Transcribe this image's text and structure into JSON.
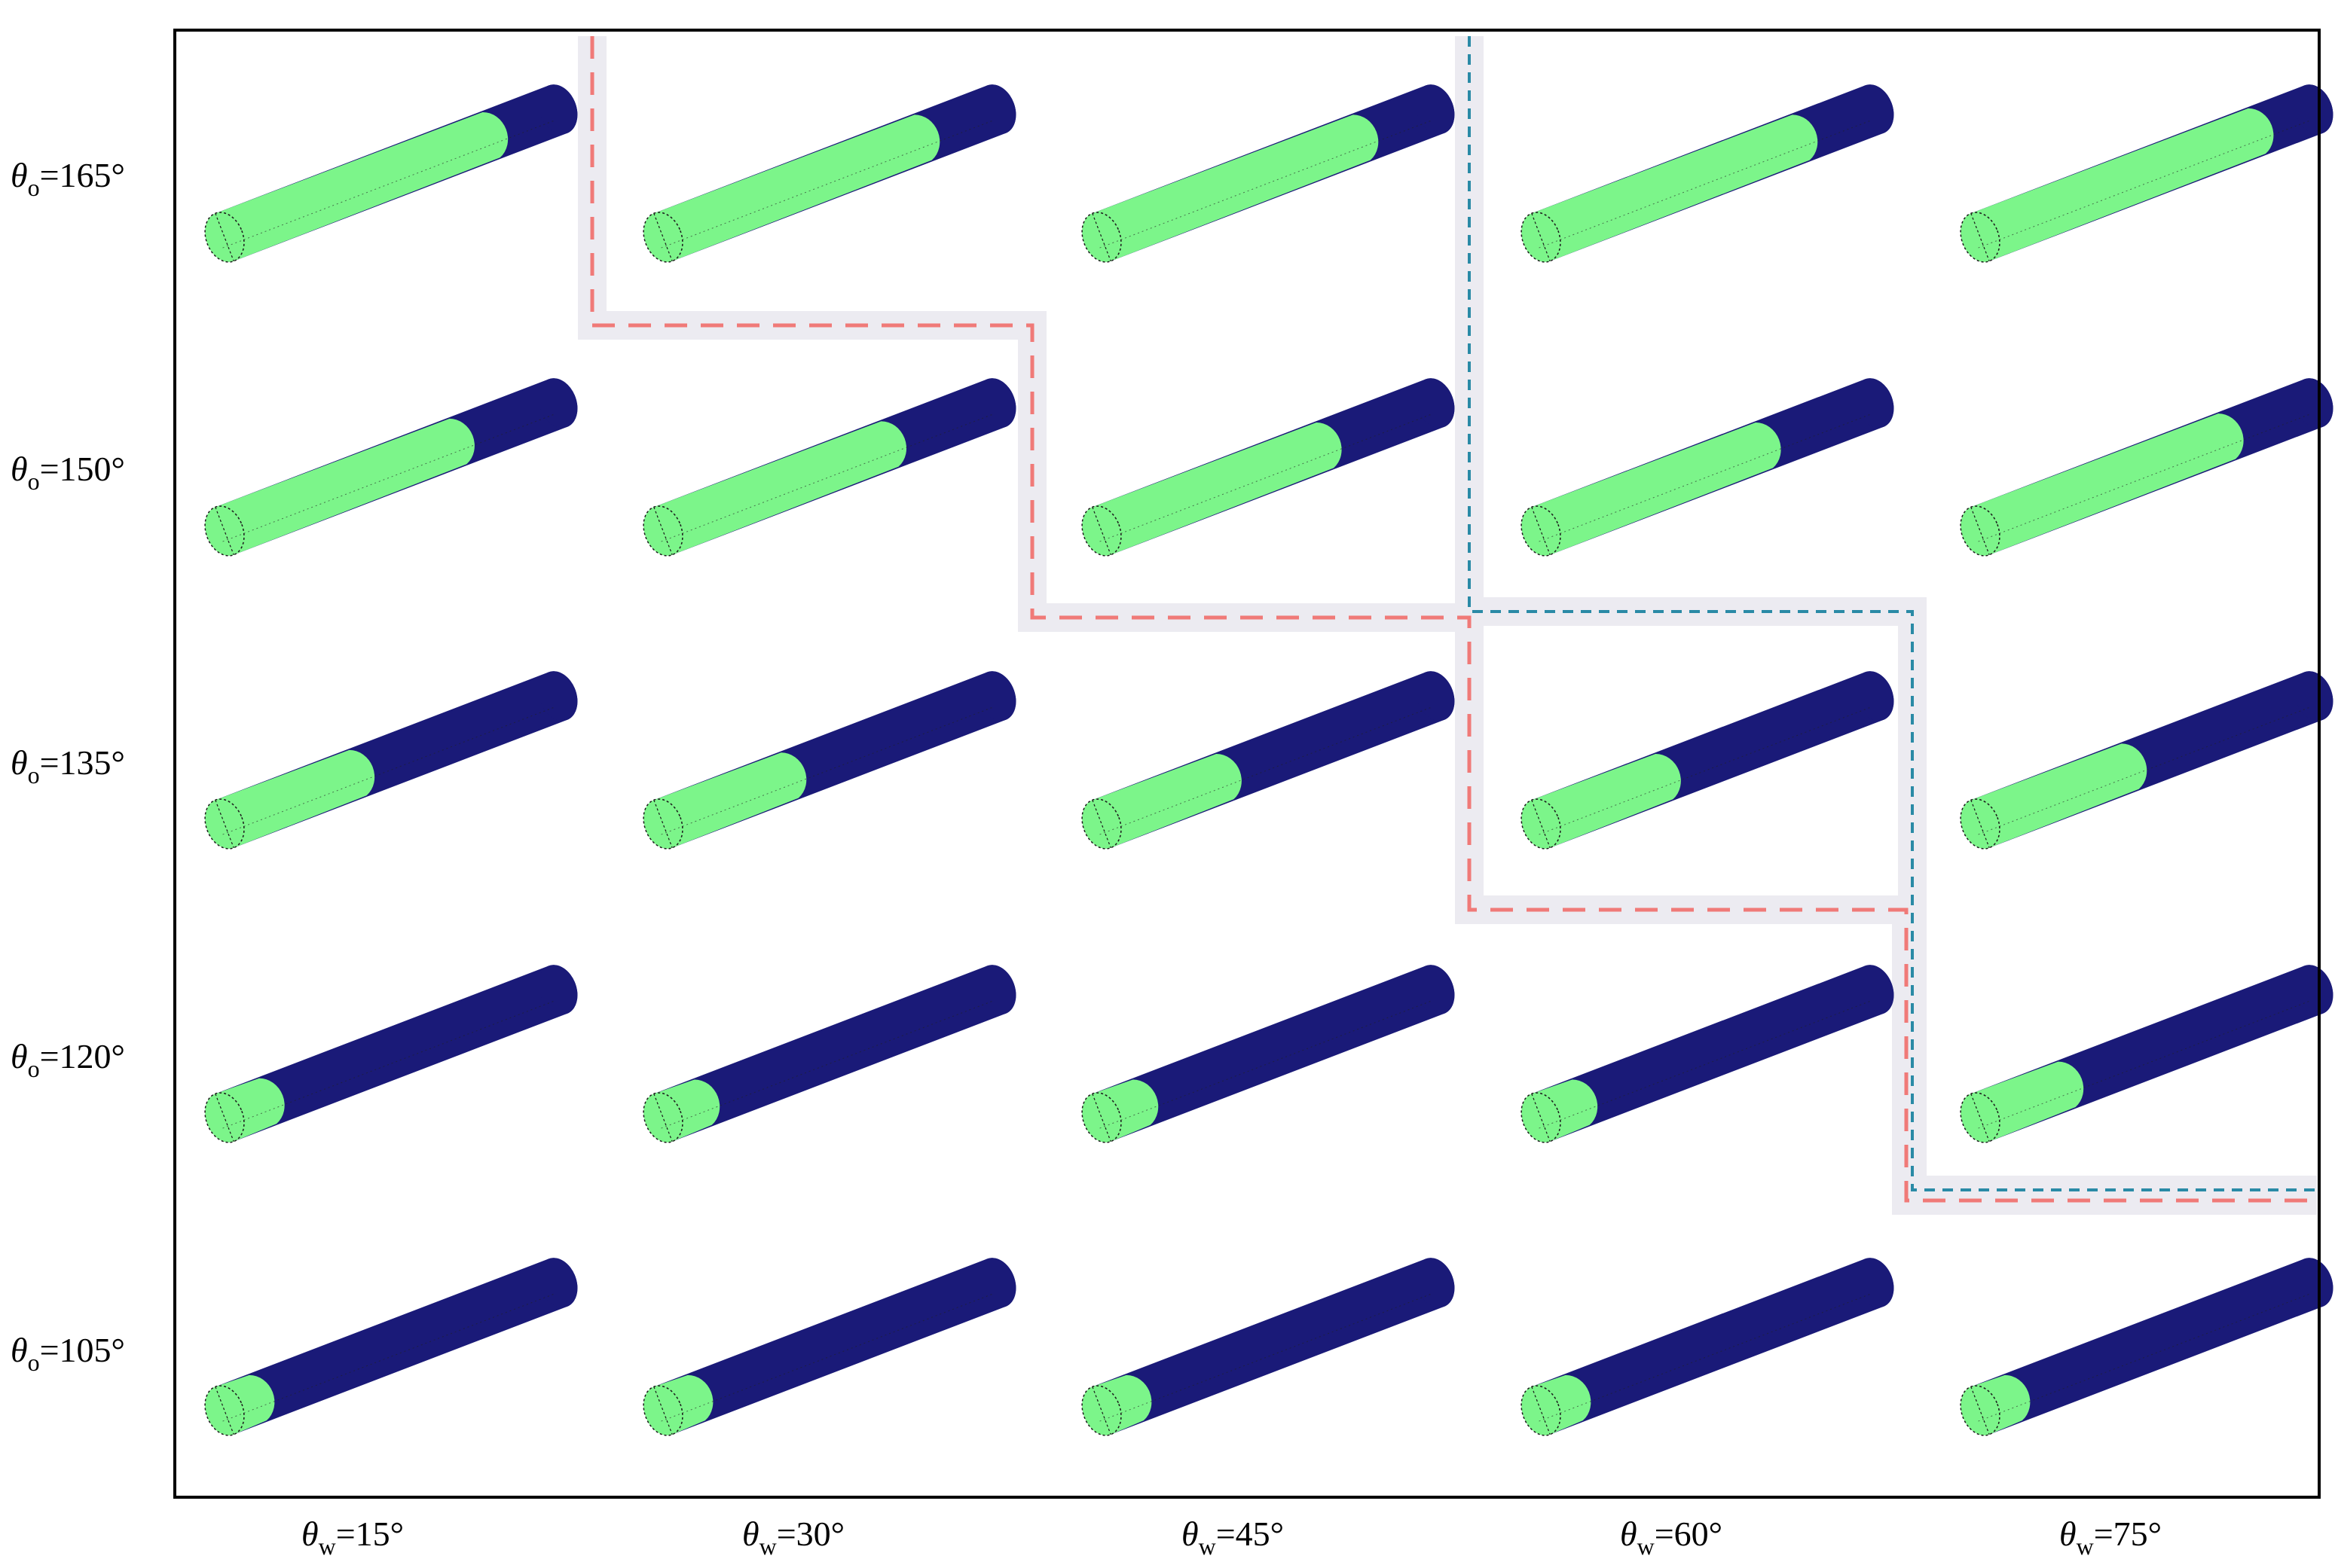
{
  "figure": {
    "rows": [
      {
        "symbol": "θ",
        "subscript": "o",
        "value": "=165°"
      },
      {
        "symbol": "θ",
        "subscript": "o",
        "value": "=150°"
      },
      {
        "symbol": "θ",
        "subscript": "o",
        "value": "=135°"
      },
      {
        "symbol": "θ",
        "subscript": "o",
        "value": "=120°"
      },
      {
        "symbol": "θ",
        "subscript": "o",
        "value": "=105°"
      }
    ],
    "columns": [
      {
        "symbol": "θ",
        "subscript": "w",
        "value": "=15°"
      },
      {
        "symbol": "θ",
        "subscript": "w",
        "value": "=30°"
      },
      {
        "symbol": "θ",
        "subscript": "w",
        "value": "=45°"
      },
      {
        "symbol": "θ",
        "subscript": "w",
        "value": "=60°"
      },
      {
        "symbol": "θ",
        "subscript": "w",
        "value": "=75°"
      }
    ],
    "colors": {
      "water_phase": "#1a1a78",
      "oil_phase": "#7cf58a",
      "red_boundary": "#f07a78",
      "teal_boundary": "#2a8aa6",
      "band": "#ecebf1",
      "frame": "#000000"
    }
  }
}
